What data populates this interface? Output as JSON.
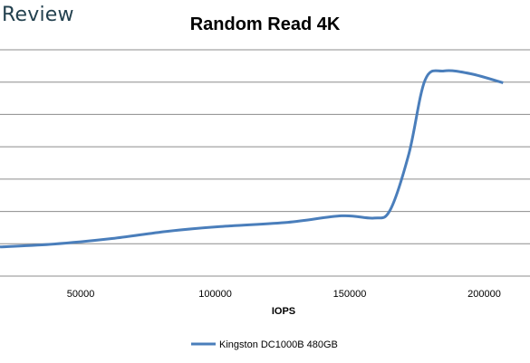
{
  "watermark": "Review",
  "chart_data": {
    "type": "line",
    "title": "Random Read 4K",
    "xlabel": "IOPS",
    "ylabel": "",
    "x_ticks": [
      50000,
      100000,
      150000,
      200000
    ],
    "xlim": [
      20000,
      217000
    ],
    "ylim": [
      0,
      8
    ],
    "grid": true,
    "legend_position": "bottom",
    "series": [
      {
        "name": "Kingston DC1000B 480GB",
        "color": "#4a7ebb",
        "points": [
          [
            20000,
            1.0
          ],
          [
            40000,
            1.1
          ],
          [
            62000,
            1.3
          ],
          [
            82000,
            1.55
          ],
          [
            102000,
            1.72
          ],
          [
            127000,
            1.87
          ],
          [
            147000,
            2.1
          ],
          [
            159000,
            2.02
          ],
          [
            165000,
            2.3
          ],
          [
            172000,
            4.3
          ],
          [
            178000,
            6.9
          ],
          [
            185000,
            7.22
          ],
          [
            195000,
            7.12
          ],
          [
            207000,
            6.8
          ]
        ]
      }
    ]
  }
}
